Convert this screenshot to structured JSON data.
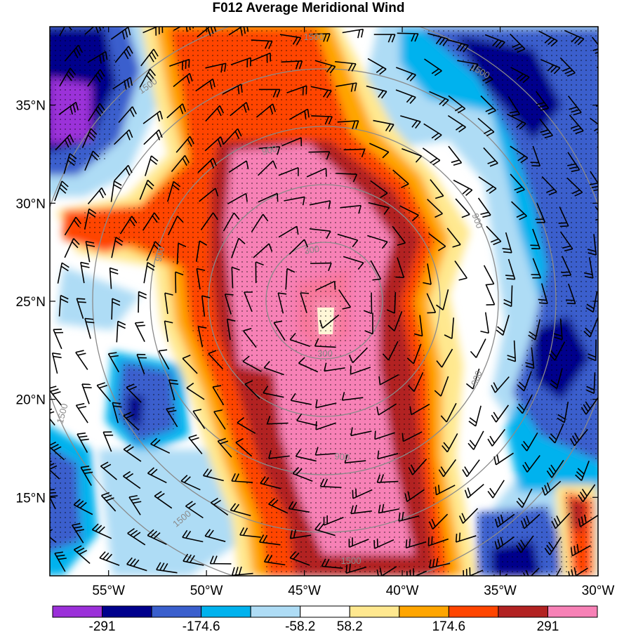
{
  "title": "F012 Average Meridional Wind",
  "map": {
    "lon_range": [
      -58,
      -30
    ],
    "lat_range": [
      11,
      39
    ],
    "lat_ticks": [
      {
        "value": 35,
        "label": "35°N"
      },
      {
        "value": 30,
        "label": "30°N"
      },
      {
        "value": 25,
        "label": "25°N"
      },
      {
        "value": 20,
        "label": "20°N"
      },
      {
        "value": 15,
        "label": "15°N"
      }
    ],
    "lon_ticks": [
      {
        "value": -55,
        "label": "55°W"
      },
      {
        "value": -50,
        "label": "50°W"
      },
      {
        "value": -45,
        "label": "45°W"
      },
      {
        "value": -40,
        "label": "40°W"
      },
      {
        "value": -35,
        "label": "35°W"
      },
      {
        "value": -30,
        "label": "30°W"
      }
    ],
    "range_rings": [
      {
        "value": 300,
        "labels": [
          "300",
          "300"
        ]
      },
      {
        "value": 900,
        "labels": [
          "900",
          "900",
          "900",
          "900",
          "900"
        ]
      },
      {
        "value": 1500,
        "labels": [
          "1500",
          "1500",
          "1500",
          "1500",
          "1500",
          "1500"
        ]
      }
    ],
    "ring_color": "#8a8a8a",
    "stipple": true,
    "wind_barbs": true
  },
  "colorbar": {
    "colors": [
      "#9b30d9",
      "#00008c",
      "#3a5fcd",
      "#00b2ee",
      "#aedcf5",
      "#ffffff",
      "#ffe88f",
      "#ffa500",
      "#ff4500",
      "#b22222",
      "#f781b6"
    ],
    "labels": [
      {
        "index": 1,
        "text": "-291"
      },
      {
        "index": 3,
        "text": "-174.6"
      },
      {
        "index": 5,
        "text": "-58.2"
      },
      {
        "index": 6,
        "text": "58.2"
      },
      {
        "index": 8,
        "text": "174.6"
      },
      {
        "index": 10,
        "text": "291"
      }
    ]
  }
}
